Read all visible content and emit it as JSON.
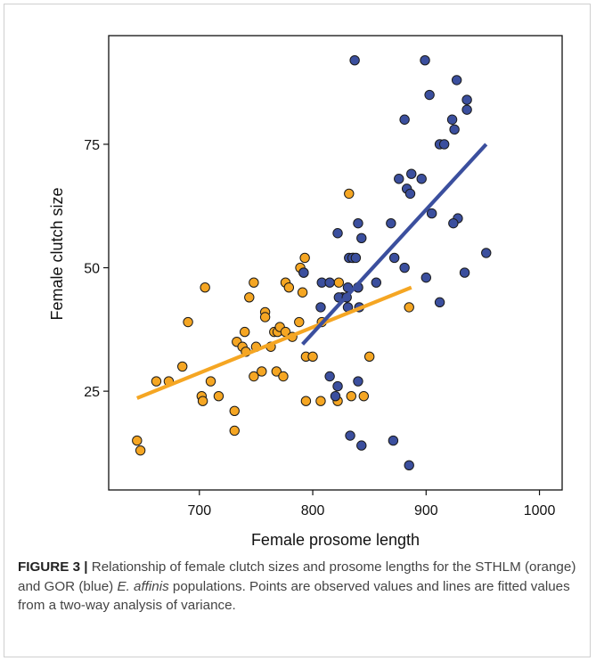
{
  "chart_data": {
    "type": "scatter",
    "title": "",
    "xlabel": "Female prosome length",
    "ylabel": "Female clutch size",
    "xlim": [
      620,
      1020
    ],
    "ylim": [
      5,
      97
    ],
    "xticks": [
      700,
      800,
      900,
      1000
    ],
    "yticks": [
      25,
      50,
      75
    ],
    "grid": false,
    "legend": "none",
    "series": [
      {
        "color": "#f5a623",
        "fill": "#f5a623",
        "points": [
          [
            645,
            15
          ],
          [
            648,
            13
          ],
          [
            662,
            27
          ],
          [
            673,
            27
          ],
          [
            685,
            30
          ],
          [
            690,
            39
          ],
          [
            702,
            24
          ],
          [
            703,
            23
          ],
          [
            705,
            46
          ],
          [
            710,
            27
          ],
          [
            717,
            24
          ],
          [
            731,
            21
          ],
          [
            731,
            17
          ],
          [
            733,
            35
          ],
          [
            738,
            34
          ],
          [
            740,
            37
          ],
          [
            741,
            33
          ],
          [
            744,
            44
          ],
          [
            748,
            47
          ],
          [
            748,
            28
          ],
          [
            750,
            34
          ],
          [
            755,
            29
          ],
          [
            758,
            41
          ],
          [
            758,
            40
          ],
          [
            763,
            34
          ],
          [
            766,
            37
          ],
          [
            768,
            29
          ],
          [
            769,
            37
          ],
          [
            771,
            38
          ],
          [
            774,
            28
          ],
          [
            776,
            47
          ],
          [
            776,
            37
          ],
          [
            779,
            46
          ],
          [
            782,
            36
          ],
          [
            788,
            39
          ],
          [
            789,
            50
          ],
          [
            791,
            45
          ],
          [
            792,
            49
          ],
          [
            793,
            52
          ],
          [
            794,
            32
          ],
          [
            794,
            23
          ],
          [
            800,
            32
          ],
          [
            807,
            23
          ],
          [
            808,
            39
          ],
          [
            822,
            23
          ],
          [
            823,
            47
          ],
          [
            826,
            44
          ],
          [
            832,
            65
          ],
          [
            834,
            24
          ],
          [
            836,
            52
          ],
          [
            840,
            46
          ],
          [
            845,
            24
          ],
          [
            850,
            32
          ],
          [
            885,
            42
          ]
        ],
        "fit": [
          [
            645,
            23.6
          ],
          [
            887,
            46.0
          ]
        ]
      },
      {
        "color": "#3b4f9e",
        "fill": "#3b4f9e",
        "points": [
          [
            837,
            92
          ],
          [
            899,
            92
          ],
          [
            927,
            88
          ],
          [
            903,
            85
          ],
          [
            936,
            84
          ],
          [
            936,
            82
          ],
          [
            881,
            80
          ],
          [
            923,
            80
          ],
          [
            925,
            78
          ],
          [
            912,
            75
          ],
          [
            916,
            75
          ],
          [
            876,
            68
          ],
          [
            896,
            68
          ],
          [
            887,
            69
          ],
          [
            883,
            66
          ],
          [
            886,
            65
          ],
          [
            928,
            60
          ],
          [
            905,
            61
          ],
          [
            924,
            59
          ],
          [
            840,
            59
          ],
          [
            869,
            59
          ],
          [
            822,
            57
          ],
          [
            843,
            56
          ],
          [
            934,
            49
          ],
          [
            953,
            53
          ],
          [
            872,
            52
          ],
          [
            832,
            52
          ],
          [
            835,
            52
          ],
          [
            838,
            52
          ],
          [
            881,
            50
          ],
          [
            792,
            49
          ],
          [
            856,
            47
          ],
          [
            808,
            47
          ],
          [
            815,
            47
          ],
          [
            900,
            48
          ],
          [
            831,
            46
          ],
          [
            840,
            46
          ],
          [
            826,
            44
          ],
          [
            823,
            44
          ],
          [
            830,
            44
          ],
          [
            912,
            43
          ],
          [
            807,
            42
          ],
          [
            831,
            42
          ],
          [
            841,
            42
          ],
          [
            815,
            28
          ],
          [
            820,
            24
          ],
          [
            822,
            26
          ],
          [
            840,
            27
          ],
          [
            833,
            16
          ],
          [
            843,
            14
          ],
          [
            871,
            15
          ],
          [
            885,
            10
          ]
        ],
        "fit": [
          [
            791,
            34.5
          ],
          [
            953,
            75.0
          ]
        ]
      }
    ]
  },
  "caption": {
    "label": "FIGURE 3 |",
    "text_before": " Relationship of female clutch sizes and prosome lengths for the STHLM (orange) and GOR (blue) ",
    "species": "E. affinis",
    "text_after": " populations. Points are observed values and lines are fitted values from a two-way analysis of variance."
  }
}
